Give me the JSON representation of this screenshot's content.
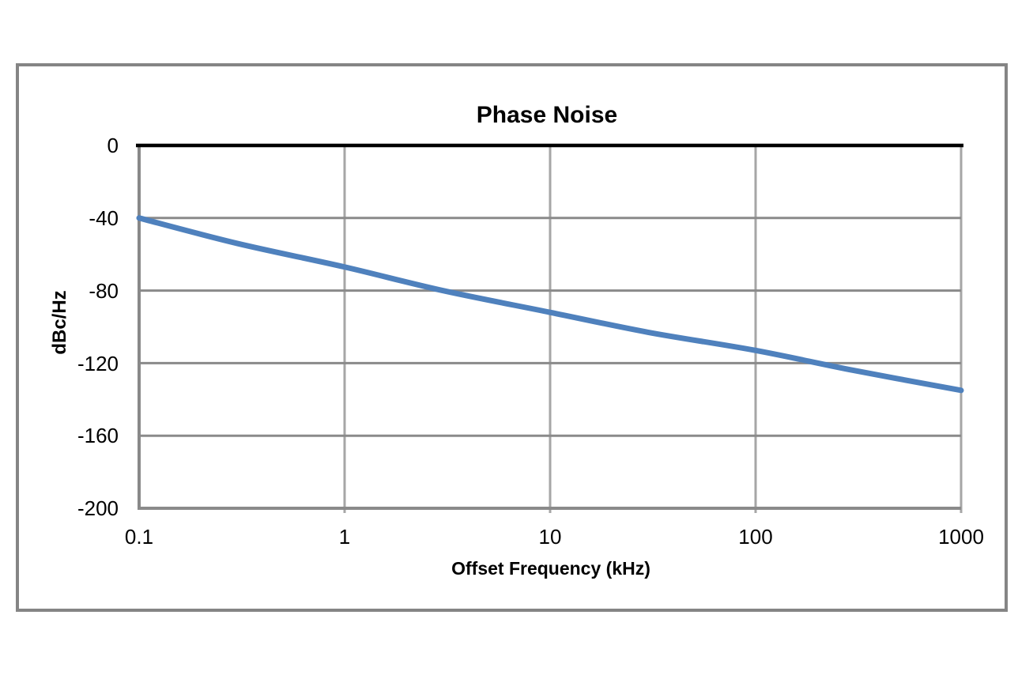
{
  "chart_data": {
    "type": "line",
    "title": "Phase Noise",
    "xlabel": "Offset Frequency (kHz)",
    "ylabel": "dBc/Hz",
    "x_scale": "log",
    "xlim": [
      0.1,
      1000
    ],
    "ylim": [
      -200,
      0
    ],
    "xticks": [
      0.1,
      1,
      10,
      100,
      1000
    ],
    "xtick_labels": [
      "0.1",
      "1",
      "10",
      "100",
      "1000"
    ],
    "yticks": [
      0,
      -40,
      -80,
      -120,
      -160,
      -200
    ],
    "ytick_labels": [
      "0",
      "-40",
      "-80",
      "-120",
      "-160",
      "-200"
    ],
    "grid": true,
    "legend": "none",
    "series": [
      {
        "name": "Phase Noise",
        "color": "#4F81BD",
        "stroke_width": 7,
        "x": [
          0.1,
          0.3,
          1,
          3,
          10,
          30,
          100,
          300,
          1000
        ],
        "y": [
          -40,
          -54,
          -67,
          -80,
          -92,
          -103,
          -113,
          -124,
          -135
        ]
      }
    ],
    "colors": {
      "series_line": "#4F81BD",
      "zero_axis_line": "#000000",
      "y_axis_line": "#898989",
      "h_gridline": "#8A8A8A",
      "v_gridline": "#A6A6A6",
      "bottom_gridline": "#8A8A8A",
      "frame_border": "#858585",
      "text": "#000000"
    }
  }
}
